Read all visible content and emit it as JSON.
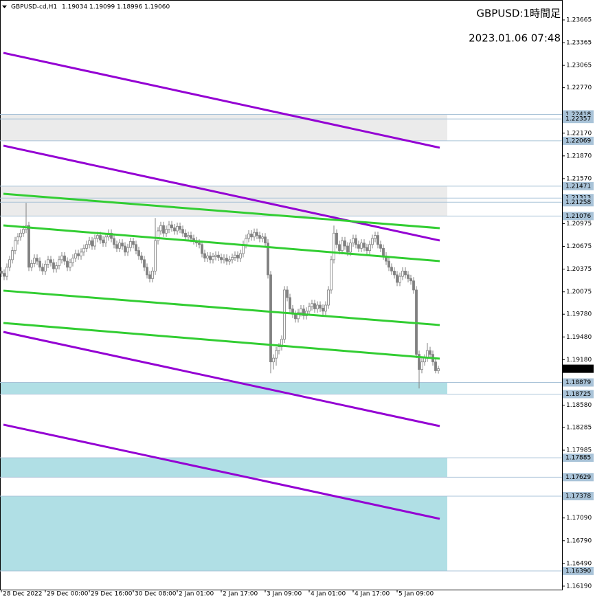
{
  "chart_data": {
    "type": "candlestick",
    "symbol": "GBPUSD-cd,H1",
    "header_ohlc": [
      "1.19034",
      "1.19099",
      "1.18996",
      "1.19060"
    ],
    "title": "GBPUSD:1時間足",
    "subtitle": "2023.01.06 07:48",
    "candle_color": "#808080",
    "bull_fill": "#ffffff",
    "open": [
      1.2035,
      1.2032,
      1.2028,
      1.204,
      1.205,
      1.2062,
      1.2075,
      1.208,
      1.2085,
      1.209,
      1.2095,
      1.204,
      1.2045,
      1.2052,
      1.2048,
      1.204,
      1.2035,
      1.2044,
      1.205,
      1.2046,
      1.2038,
      1.2042,
      1.205,
      1.2055,
      1.2048,
      1.204,
      1.2046,
      1.2052,
      1.2058,
      1.2055,
      1.206,
      1.2065,
      1.207,
      1.2075,
      1.2068,
      1.2078,
      1.2082,
      1.2076,
      1.2072,
      1.208,
      1.2085,
      1.2078,
      1.207,
      1.2065,
      1.2072,
      1.2068,
      1.206,
      1.2066,
      1.2074,
      1.207,
      1.2062,
      1.2055,
      1.205,
      1.204,
      1.203,
      1.2025,
      1.2035,
      1.2075,
      1.2088,
      1.2095,
      1.2085,
      1.209,
      1.2096,
      1.2092,
      1.2088,
      1.2094,
      1.209,
      1.2085,
      1.208,
      1.2082,
      1.2078,
      1.2075,
      1.2072,
      1.207,
      1.2058,
      1.2052,
      1.2055,
      1.205,
      1.2054,
      1.2056,
      1.2053,
      1.205,
      1.2052,
      1.2048,
      1.205,
      1.2053,
      1.2056,
      1.2052,
      1.2058,
      1.207,
      1.2078,
      1.2084,
      1.208,
      1.2086,
      1.2082,
      1.2078,
      1.208,
      1.2072,
      1.203,
      1.1915,
      1.192,
      1.193,
      1.1935,
      1.1945,
      1.201,
      1.2,
      1.1985,
      1.1978,
      1.1972,
      1.198,
      1.1985,
      1.1976,
      1.1982,
      1.1988,
      1.1992,
      1.1985,
      1.199,
      1.1986,
      1.1982,
      1.199,
      1.201,
      1.205,
      1.2085,
      1.207,
      1.2062,
      1.2075,
      1.2068,
      1.206,
      1.2072,
      1.2078,
      1.207,
      1.2065,
      1.2072,
      1.2066,
      1.2062,
      1.207,
      1.2078,
      1.2082,
      1.207,
      1.2065,
      1.2055,
      1.2048,
      1.204,
      1.2035,
      1.203,
      1.202,
      1.2028,
      1.2035,
      1.203,
      1.2025,
      1.2022,
      1.201,
      1.1925,
      1.1905,
      1.1915,
      1.192,
      1.193,
      1.1925,
      1.1915,
      1.19034
    ],
    "high": [
      1.204,
      1.2037,
      1.2045,
      1.2055,
      1.2067,
      1.208,
      1.2085,
      1.209,
      1.2095,
      1.2125,
      1.21,
      1.205,
      1.2057,
      1.2057,
      1.2053,
      1.2045,
      1.2049,
      1.2055,
      1.2055,
      1.2051,
      1.2047,
      1.2055,
      1.206,
      1.206,
      1.2053,
      1.2051,
      1.2057,
      1.2063,
      1.2063,
      1.2065,
      1.207,
      1.2075,
      1.208,
      1.208,
      1.2083,
      1.2087,
      1.2087,
      1.2081,
      1.2085,
      1.209,
      1.209,
      1.2083,
      1.2075,
      1.2077,
      1.2077,
      1.2073,
      1.2071,
      1.2079,
      1.2079,
      1.2075,
      1.2067,
      1.206,
      1.2055,
      1.2045,
      1.2035,
      1.204,
      1.2105,
      1.2093,
      1.21,
      1.21,
      1.2095,
      1.2101,
      1.2101,
      1.2097,
      1.2099,
      1.2099,
      1.2095,
      1.209,
      1.2087,
      1.2087,
      1.2083,
      1.208,
      1.2077,
      1.2075,
      1.2063,
      1.206,
      1.206,
      1.2059,
      1.2061,
      1.2061,
      1.2058,
      1.2057,
      1.2057,
      1.2055,
      1.2058,
      1.2061,
      1.2061,
      1.2063,
      1.2075,
      1.2083,
      1.2089,
      1.2089,
      1.2091,
      1.2091,
      1.2087,
      1.2085,
      1.2085,
      1.2077,
      1.2035,
      1.1925,
      1.1935,
      1.194,
      1.195,
      1.2015,
      1.2015,
      1.2005,
      1.199,
      1.1983,
      1.1985,
      1.199,
      1.199,
      1.1987,
      1.1993,
      1.1997,
      1.1997,
      1.1995,
      1.1995,
      1.1991,
      1.1995,
      1.2015,
      1.2055,
      1.2095,
      1.209,
      1.2075,
      1.208,
      1.208,
      1.2073,
      1.2077,
      1.2083,
      1.2083,
      1.2075,
      1.2077,
      1.2077,
      1.2071,
      1.2075,
      1.2083,
      1.2087,
      1.2087,
      1.2075,
      1.207,
      1.206,
      1.2053,
      1.2045,
      1.204,
      1.2035,
      1.2033,
      1.204,
      1.204,
      1.2035,
      1.203,
      1.2027,
      1.2015,
      1.193,
      1.192,
      1.1925,
      1.194,
      1.1935,
      1.193,
      1.192,
      1.19099
    ],
    "low": [
      1.2027,
      1.2023,
      1.2023,
      1.2035,
      1.2045,
      1.2057,
      1.207,
      1.2075,
      1.208,
      1.2085,
      1.2035,
      1.2035,
      1.204,
      1.2043,
      1.2035,
      1.203,
      1.203,
      1.2039,
      1.2041,
      1.2033,
      1.2033,
      1.2037,
      1.2045,
      1.2043,
      1.2035,
      1.2035,
      1.2041,
      1.2047,
      1.205,
      1.205,
      1.2055,
      1.206,
      1.2065,
      1.2063,
      1.2063,
      1.2073,
      1.2071,
      1.2067,
      1.2067,
      1.2075,
      1.2073,
      1.2065,
      1.206,
      1.206,
      1.2063,
      1.2055,
      1.2055,
      1.2061,
      1.2065,
      1.2057,
      1.205,
      1.2045,
      1.2035,
      1.2025,
      1.202,
      1.202,
      1.203,
      1.207,
      1.2083,
      1.208,
      1.208,
      1.2085,
      1.2087,
      1.2083,
      1.2083,
      1.2085,
      1.208,
      1.2075,
      1.2075,
      1.2073,
      1.207,
      1.2067,
      1.2065,
      1.2053,
      1.2047,
      1.2047,
      1.2045,
      1.2045,
      1.2049,
      1.2048,
      1.2045,
      1.2045,
      1.2043,
      1.2043,
      1.2045,
      1.2048,
      1.2047,
      1.2047,
      1.2053,
      1.2065,
      1.2073,
      1.2075,
      1.2075,
      1.2077,
      1.2073,
      1.2073,
      1.2067,
      1.2025,
      1.19,
      1.1905,
      1.191,
      1.1925,
      1.193,
      1.194,
      1.1995,
      1.198,
      1.1973,
      1.1967,
      1.1967,
      1.1975,
      1.1971,
      1.1971,
      1.1977,
      1.1983,
      1.198,
      1.198,
      1.1981,
      1.1977,
      1.1977,
      1.1985,
      1.2005,
      1.2045,
      1.2065,
      1.2057,
      1.2057,
      1.2063,
      1.2055,
      1.2055,
      1.2067,
      1.2065,
      1.206,
      1.206,
      1.2061,
      1.2057,
      1.2057,
      1.2065,
      1.2073,
      1.2065,
      1.206,
      1.205,
      1.2043,
      1.2035,
      1.203,
      1.2025,
      1.2015,
      1.2015,
      1.2023,
      1.2025,
      1.202,
      1.2017,
      1.2005,
      1.192,
      1.188,
      1.19,
      1.191,
      1.1915,
      1.192,
      1.191,
      1.19,
      1.18996
    ],
    "close": [
      1.2032,
      1.2028,
      1.204,
      1.205,
      1.2062,
      1.2075,
      1.208,
      1.2085,
      1.209,
      1.2095,
      1.204,
      1.2045,
      1.2052,
      1.2048,
      1.204,
      1.2035,
      1.2044,
      1.205,
      1.2046,
      1.2038,
      1.2042,
      1.205,
      1.2055,
      1.2048,
      1.204,
      1.2046,
      1.2052,
      1.2058,
      1.2055,
      1.206,
      1.2065,
      1.207,
      1.2075,
      1.2068,
      1.2078,
      1.2082,
      1.2076,
      1.2072,
      1.208,
      1.2085,
      1.2078,
      1.207,
      1.2065,
      1.2072,
      1.2068,
      1.206,
      1.2066,
      1.2074,
      1.207,
      1.2062,
      1.2055,
      1.205,
      1.204,
      1.203,
      1.2025,
      1.2035,
      1.2075,
      1.2088,
      1.2095,
      1.2085,
      1.209,
      1.2096,
      1.2092,
      1.2088,
      1.2094,
      1.209,
      1.2085,
      1.208,
      1.2082,
      1.2078,
      1.2075,
      1.2072,
      1.207,
      1.2058,
      1.2052,
      1.2055,
      1.205,
      1.2054,
      1.2056,
      1.2053,
      1.205,
      1.2052,
      1.2048,
      1.205,
      1.2053,
      1.2056,
      1.2052,
      1.2058,
      1.207,
      1.2078,
      1.2084,
      1.208,
      1.2086,
      1.2082,
      1.2078,
      1.208,
      1.2072,
      1.203,
      1.1915,
      1.192,
      1.193,
      1.1935,
      1.1945,
      1.201,
      1.2,
      1.1985,
      1.1978,
      1.1972,
      1.198,
      1.1985,
      1.1976,
      1.1982,
      1.1988,
      1.1992,
      1.1985,
      1.199,
      1.1986,
      1.1982,
      1.199,
      1.201,
      1.205,
      1.2085,
      1.207,
      1.2062,
      1.2075,
      1.2068,
      1.206,
      1.2072,
      1.2078,
      1.207,
      1.2065,
      1.2072,
      1.2066,
      1.2062,
      1.207,
      1.2078,
      1.2082,
      1.207,
      1.2065,
      1.2055,
      1.2048,
      1.204,
      1.2035,
      1.203,
      1.202,
      1.2028,
      1.2035,
      1.203,
      1.2025,
      1.2022,
      1.201,
      1.1925,
      1.1905,
      1.1915,
      1.192,
      1.193,
      1.1925,
      1.1915,
      1.19034,
      1.1906
    ],
    "current_price": {
      "value": 1.1906,
      "label": "1.19060"
    },
    "xlim": [
      -0.5,
      204
    ],
    "xticks": [
      {
        "value": 0,
        "label": "28 Dec 2022"
      },
      {
        "value": 16,
        "label": "29 Dec 00:00"
      },
      {
        "value": 32,
        "label": "29 Dec 16:00"
      },
      {
        "value": 48,
        "label": "30 Dec 08:00"
      },
      {
        "value": 64,
        "label": "2 Jan 01:00"
      },
      {
        "value": 80,
        "label": "2 Jan 17:00"
      },
      {
        "value": 96,
        "label": "3 Jan 09:00"
      },
      {
        "value": 112,
        "label": "4 Jan 01:00"
      },
      {
        "value": 128,
        "label": "4 Jan 17:00"
      },
      {
        "value": 144,
        "label": "5 Jan 09:00"
      }
    ],
    "ylim": [
      1.16144,
      1.23928
    ],
    "yticks": [
      1.23665,
      1.23365,
      1.23065,
      {
        "value": 1.2277,
        "label": "1.22770"
      },
      {
        "value": 1.2217,
        "label": "1.22170"
      },
      {
        "value": 1.2187,
        "label": "1.21870"
      },
      {
        "value": 1.2157,
        "label": "1.21570"
      },
      1.20975,
      1.20675,
      1.20375,
      1.20075,
      {
        "value": 1.1978,
        "label": "1.19780"
      },
      {
        "value": 1.1948,
        "label": "1.19480"
      },
      {
        "value": 1.1918,
        "label": "1.19180"
      },
      {
        "value": 1.1858,
        "label": "1.18580"
      },
      1.18285,
      1.17985,
      {
        "value": 1.1709,
        "label": "1.17090"
      },
      {
        "value": 1.1679,
        "label": "1.16790"
      },
      {
        "value": 1.1649,
        "label": "1.16490"
      },
      {
        "value": 1.1619,
        "label": "1.16190"
      }
    ],
    "zones": [
      {
        "top": 1.22418,
        "bottom": 1.22069,
        "color": "#ebebeb"
      },
      {
        "top": 1.21471,
        "bottom": {
          "value": 1.21076,
          "label": "1.21076"
        },
        "color": "#ebebeb"
      },
      {
        "top": 1.18879,
        "bottom": 1.18725,
        "color": "#b0dfe5"
      },
      {
        "top": 1.17885,
        "bottom": 1.17629,
        "color": "#b0dfe5"
      },
      {
        "top": 1.17378,
        "bottom": {
          "value": 1.1639,
          "label": "1.16390"
        },
        "color": "#b0dfe5"
      }
    ],
    "levels": [
      1.22357,
      1.21313,
      1.21258
    ],
    "level_color": "#a9c3d8",
    "lines": [
      {
        "color": "#9400d3",
        "x": [
          0.75,
          159.5
        ],
        "y": [
          1.2323,
          1.21978
        ]
      },
      {
        "color": "#9400d3",
        "x": [
          0.75,
          159.5
        ],
        "y": [
          1.22005,
          1.20753
        ]
      },
      {
        "color": "#9400d3",
        "x": [
          0.75,
          159.5
        ],
        "y": [
          1.19546,
          1.18303
        ]
      },
      {
        "color": "#9400d3",
        "x": [
          0.75,
          159.5
        ],
        "y": [
          1.18322,
          1.17079
        ]
      },
      {
        "color": "#32cd32",
        "x": [
          0.75,
          159.5
        ],
        "y": [
          1.2137,
          1.20916
        ]
      },
      {
        "color": "#32cd32",
        "x": [
          0.75,
          159.5
        ],
        "y": [
          1.20952,
          1.20481
        ]
      },
      {
        "color": "#32cd32",
        "x": [
          0.75,
          159.5
        ],
        "y": [
          1.20091,
          1.19637
        ]
      },
      {
        "color": "#32cd32",
        "x": [
          0.75,
          159.5
        ],
        "y": [
          1.19664,
          1.19193
        ]
      }
    ]
  }
}
